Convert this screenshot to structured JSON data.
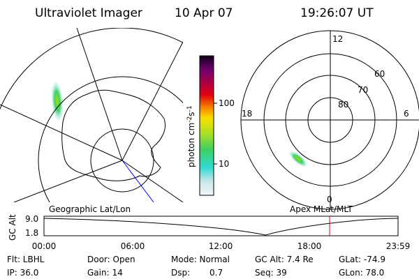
{
  "header": {
    "instrument": "Ultraviolet Imager",
    "date": "10 Apr 07",
    "time": "19:26:07 UT"
  },
  "colorbar": {
    "label": [
      "photon cm",
      "-2",
      "s",
      "-1"
    ],
    "ticks": [
      "100",
      "10"
    ]
  },
  "polar": {
    "labels": [
      "12",
      "60",
      "70",
      "80",
      "18",
      "6",
      "0"
    ]
  },
  "timeline": {
    "left_title": "Geographic Lat/Lon",
    "right_title": "Apex MLat/MLT",
    "y_label": "GC Alt",
    "y_ticks": [
      "9.0",
      "1.8"
    ],
    "x_ticks": [
      "00:00",
      "06:00",
      "12:00",
      "18:00",
      "23:59"
    ]
  },
  "status": {
    "rows": [
      [
        "Flt: LBHL",
        "Door: Open",
        "Mode: Normal",
        "GC Alt: 7.4 Re",
        "GLat: -74.9"
      ],
      [
        "IP: 36.0",
        "Gain: 14",
        "Dsp:",
        "0.7",
        "Seq: 39",
        "GLon: 78.0"
      ]
    ]
  }
}
